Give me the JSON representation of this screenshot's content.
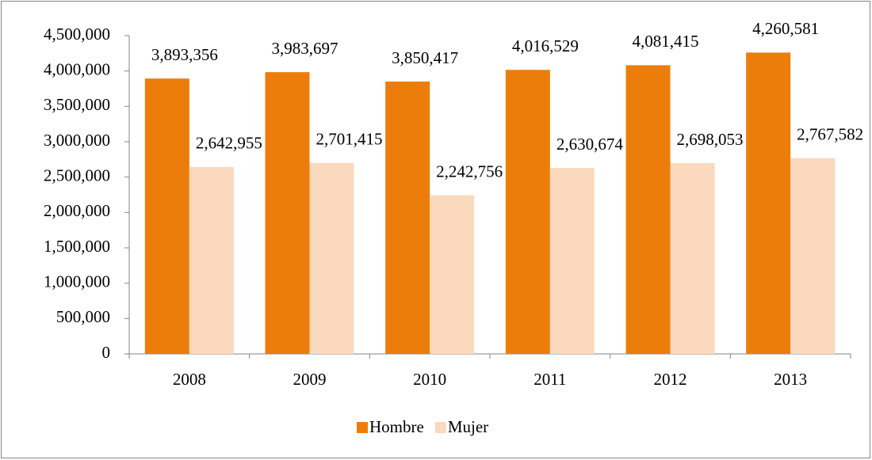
{
  "chart_data": {
    "type": "bar",
    "categories": [
      "2008",
      "2009",
      "2010",
      "2011",
      "2012",
      "2013"
    ],
    "series": [
      {
        "name": "Hombre",
        "color": "#ed7d0a",
        "values": [
          3893356,
          3983697,
          3850417,
          4016529,
          4081415,
          4260581
        ],
        "value_labels": [
          "3,893,356",
          "3,983,697",
          "3,850,417",
          "4,016,529",
          "4,081,415",
          "4,260,581"
        ]
      },
      {
        "name": "Mujer",
        "color": "#fbd9bd",
        "values": [
          2642955,
          2701415,
          2242756,
          2630674,
          2698053,
          2767582
        ],
        "value_labels": [
          "2,642,955",
          "2,701,415",
          "2,242,756",
          "2,630,674",
          "2,698,053",
          "2,767,582"
        ]
      }
    ],
    "ylim": [
      0,
      4500000
    ],
    "yticks": [
      0,
      {
        "value": 500000,
        "label": "500,000"
      },
      {
        "value": 1000000,
        "label": "1,000,000"
      },
      {
        "value": 1500000,
        "label": "1,500,000"
      },
      {
        "value": 2000000,
        "label": "2,000,000"
      },
      {
        "value": 2500000,
        "label": "2,500,000"
      },
      {
        "value": 3000000,
        "label": "3,000,000"
      },
      {
        "value": 3500000,
        "label": "3,500,000"
      },
      {
        "value": 4000000,
        "label": "4,000,000"
      },
      {
        "value": 4500000,
        "label": "4,500,000"
      }
    ],
    "grid": false,
    "legend": "bottom"
  }
}
